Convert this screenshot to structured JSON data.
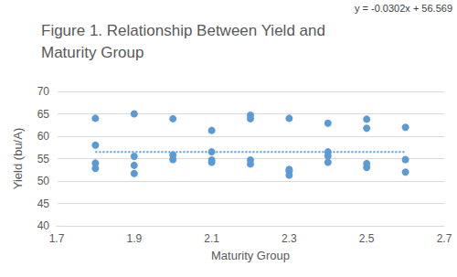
{
  "chart_data": {
    "type": "scatter",
    "title": "Figure 1. Relationship Between Yield and Maturity Group",
    "x_label": "Maturity Group",
    "y_label": "Yield (bu/A)",
    "annotations": [
      {
        "text": "y = -0.0302x + 56.569"
      }
    ],
    "xlim": [
      1.7,
      2.7
    ],
    "xticks": [
      1.7,
      1.9,
      2.1,
      2.3,
      2.5,
      2.7
    ],
    "ylim": [
      40,
      70
    ],
    "yticks": [
      40,
      45,
      50,
      55,
      60,
      65,
      70
    ],
    "grid": true,
    "series": [
      {
        "type": "scatter",
        "marker": "circle",
        "color": "#5b9bd5",
        "x": [
          1.8,
          1.8,
          1.8,
          1.8,
          1.9,
          1.9,
          1.9,
          1.9,
          2.0,
          2.0,
          2.0,
          2.1,
          2.1,
          2.1,
          2.1,
          2.2,
          2.2,
          2.2,
          2.2,
          2.3,
          2.3,
          2.3,
          2.3,
          2.4,
          2.4,
          2.4,
          2.4,
          2.5,
          2.5,
          2.5,
          2.5,
          2.6,
          2.6,
          2.6
        ],
        "values": [
          64.0,
          58.0,
          54.0,
          52.8,
          65.0,
          55.5,
          53.5,
          51.7,
          63.9,
          55.8,
          54.8,
          61.3,
          56.5,
          54.7,
          54.2,
          64.7,
          63.9,
          54.7,
          53.8,
          64.0,
          52.6,
          52.2,
          51.3,
          62.9,
          56.5,
          55.6,
          54.2,
          63.8,
          61.8,
          53.9,
          53.0,
          62.0,
          54.8,
          52.0
        ]
      },
      {
        "type": "line",
        "line_style": "dotted",
        "color": "#5b9bd5",
        "x": [
          1.8,
          2.6
        ],
        "values": [
          56.5,
          56.5
        ]
      }
    ]
  }
}
